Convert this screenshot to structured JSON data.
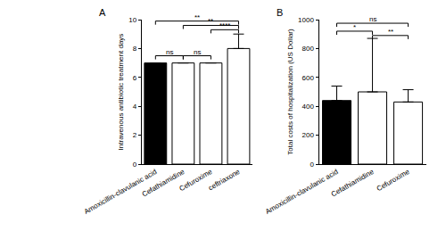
{
  "chart_data": [
    {
      "type": "bar",
      "title": "A",
      "y_label": "Intravenous antibiotic treatment days",
      "categories": [
        "Amoxicillin-clavulanic acid",
        "Cefathiamidine",
        "Cefuroxime",
        "ceftriaxone"
      ],
      "values": [
        7,
        7,
        7,
        8
      ],
      "errors": [
        0,
        0,
        0,
        1
      ],
      "colors": [
        "#000000",
        "#ffffff",
        "#ffffff",
        "#ffffff"
      ],
      "ylim": [
        0,
        10
      ],
      "yticks": [
        0,
        2,
        4,
        6,
        8,
        10
      ],
      "grid": false,
      "comparisons": [
        {
          "from": 0,
          "to": 1,
          "label": "ns",
          "y": 7.5
        },
        {
          "from": 1,
          "to": 2,
          "label": "ns",
          "y": 7.5
        },
        {
          "from": 2,
          "to": 3,
          "label": "****",
          "y": 9.3
        },
        {
          "from": 1,
          "to": 3,
          "label": "**",
          "y": 9.6
        },
        {
          "from": 0,
          "to": 3,
          "label": "**",
          "y": 9.9
        }
      ]
    },
    {
      "type": "bar",
      "title": "B",
      "y_label": "Total costs of hospitalization (US Dollar)",
      "categories": [
        "Amoxicillin-clavulanic acid",
        "Cefathiamidine",
        "Cefuroxime"
      ],
      "values": [
        440,
        500,
        430
      ],
      "errors": [
        100,
        370,
        85
      ],
      "colors": [
        "#000000",
        "#ffffff",
        "#ffffff"
      ],
      "ylim": [
        0,
        1000
      ],
      "yticks": [
        0,
        200,
        400,
        600,
        800,
        1000
      ],
      "grid": false,
      "comparisons": [
        {
          "from": 1,
          "to": 2,
          "label": "**",
          "y": 890
        },
        {
          "from": 0,
          "to": 1,
          "label": "*",
          "y": 920
        },
        {
          "from": 0,
          "to": 2,
          "label": "ns",
          "y": 975
        }
      ]
    }
  ]
}
